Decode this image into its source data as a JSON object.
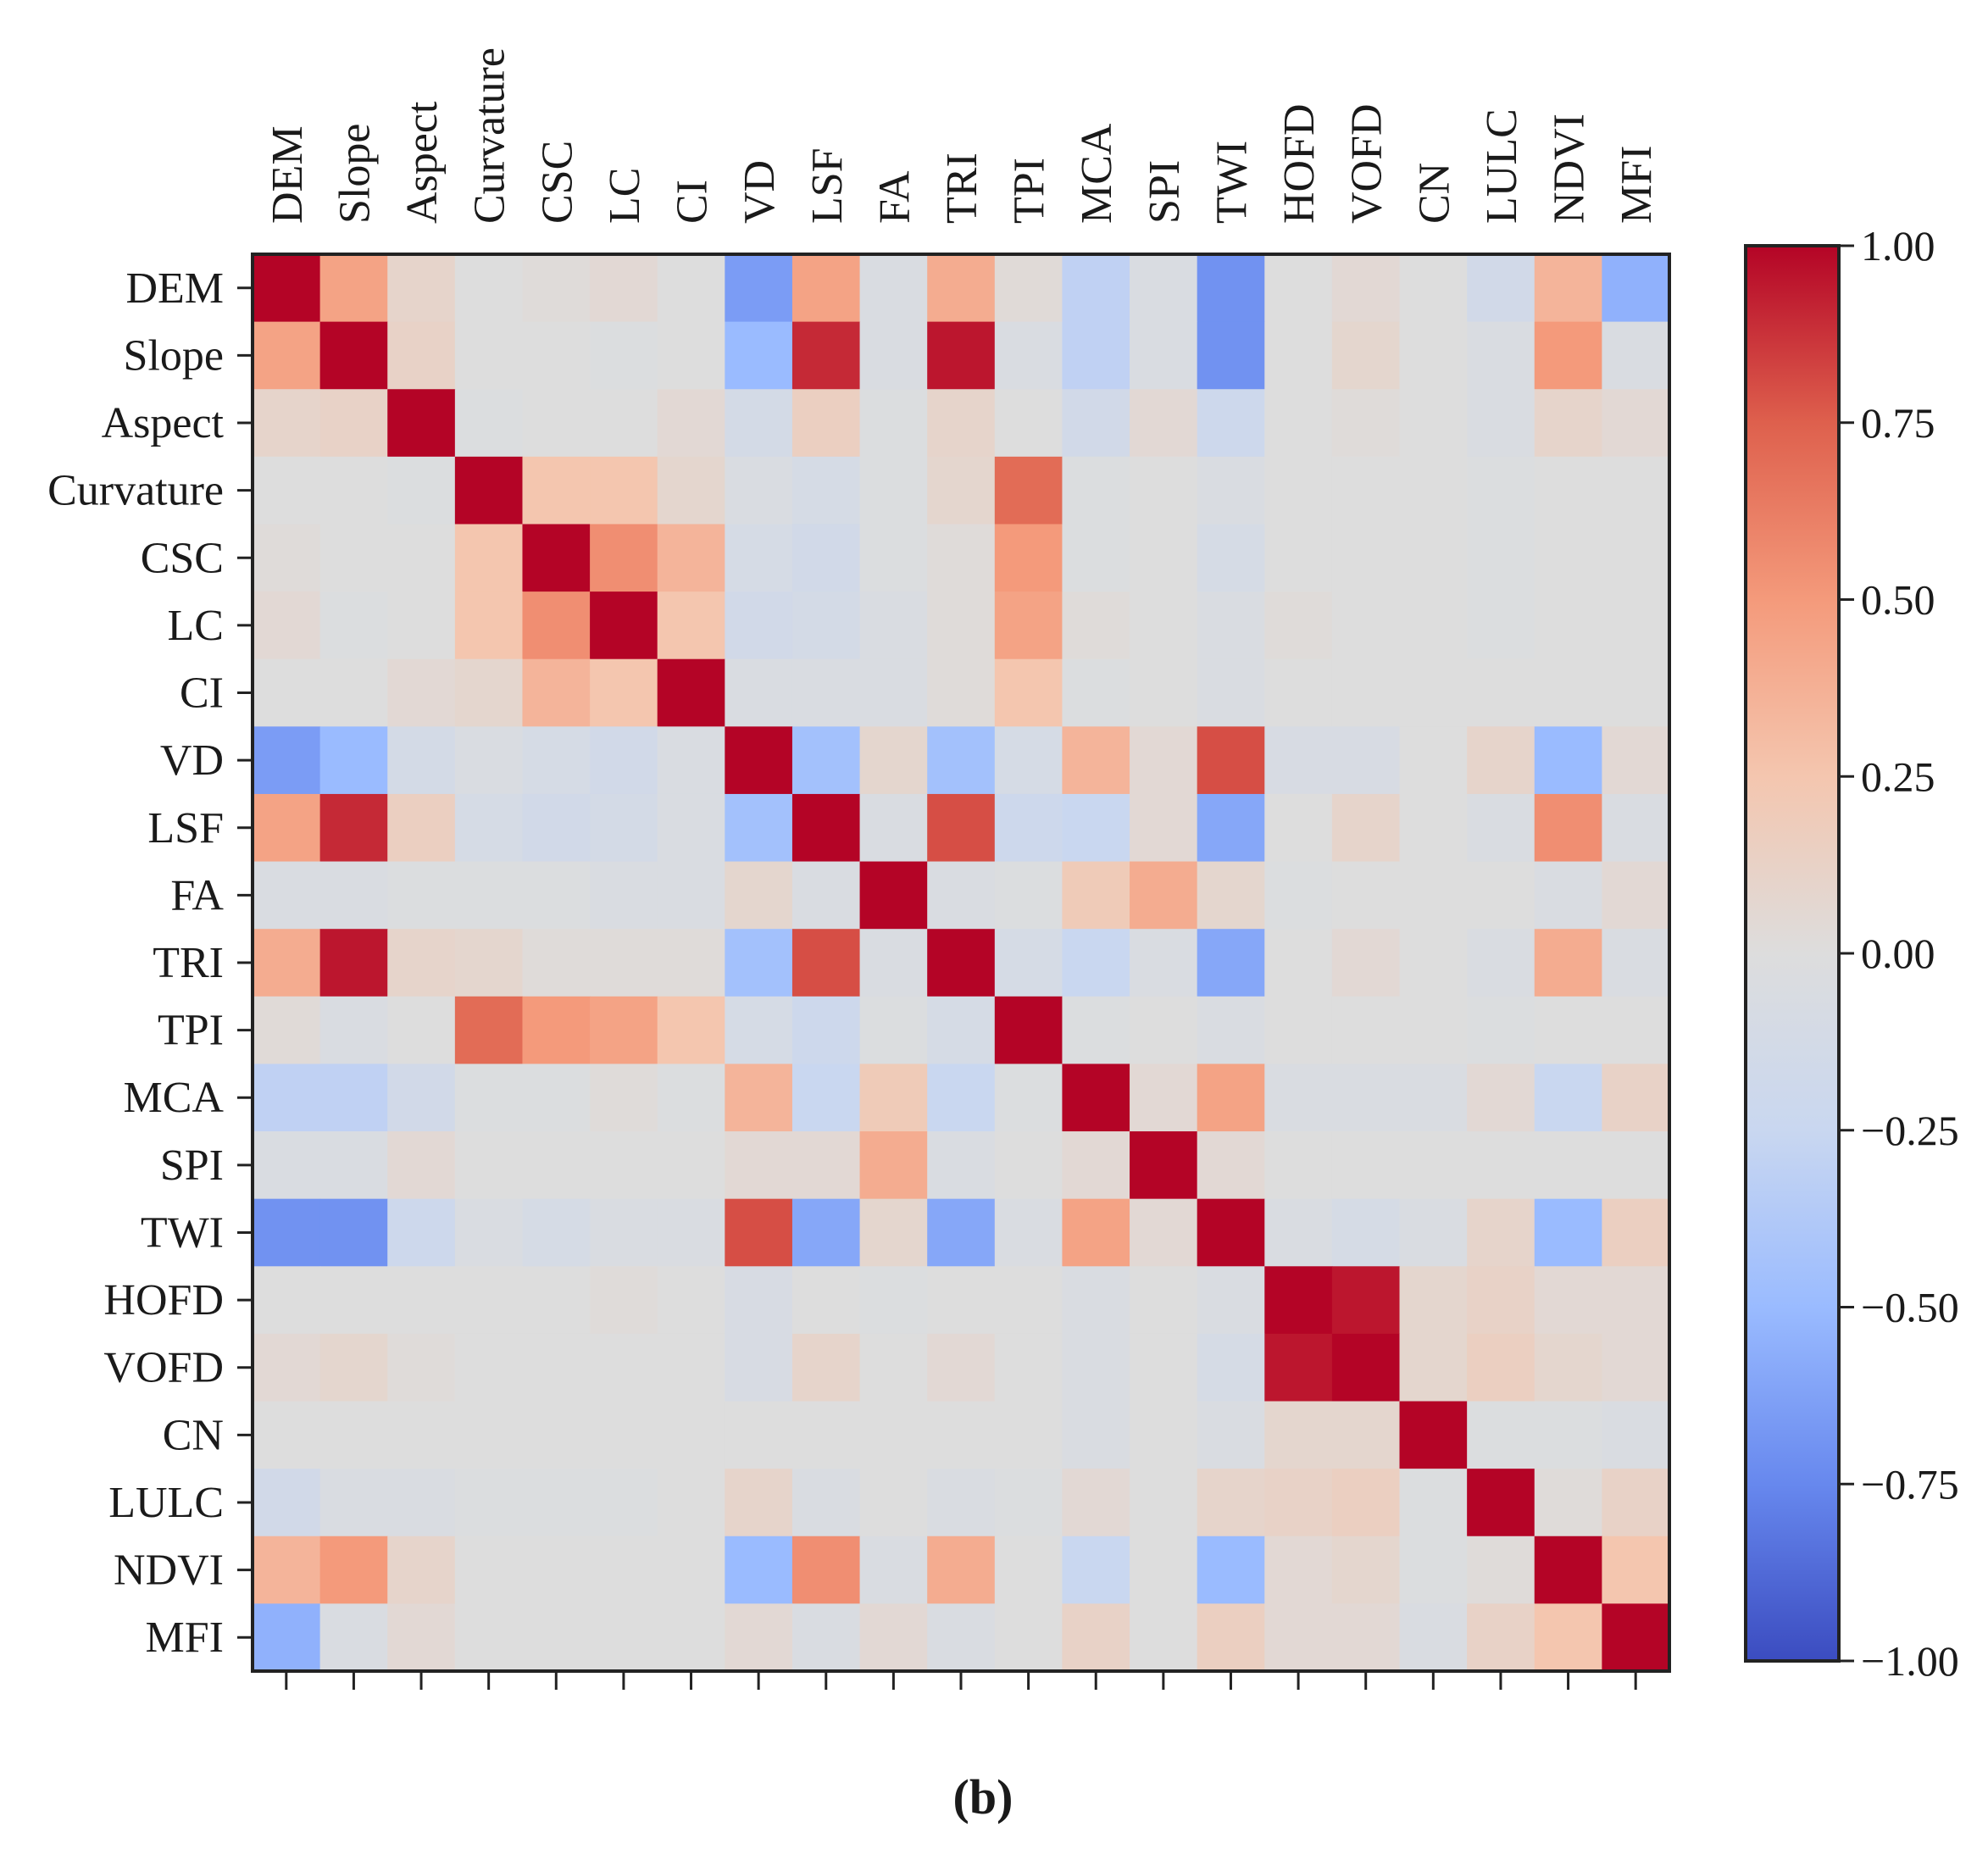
{
  "panel_label": "(b)",
  "colors": {
    "negative": "#3b4cc0",
    "neutral": "#dddddd",
    "positive": "#b40426"
  },
  "chart_data": {
    "type": "heatmap",
    "title": "",
    "colormap": "coolwarm",
    "vmin": -1.0,
    "vmax": 1.0,
    "x_labels": [
      "DEM",
      "Slope",
      "Aspect",
      "Curvature",
      "CSC",
      "LC",
      "CI",
      "VD",
      "LSF",
      "FA",
      "TRI",
      "TPI",
      "MCA",
      "SPI",
      "TWI",
      "HOFD",
      "VOFD",
      "CN",
      "LULC",
      "NDVI",
      "MFI"
    ],
    "y_labels": [
      "DEM",
      "Slope",
      "Aspect",
      "Curvature",
      "CSC",
      "LC",
      "CI",
      "VD",
      "LSF",
      "FA",
      "TRI",
      "TPI",
      "MCA",
      "SPI",
      "TWI",
      "HOFD",
      "VOFD",
      "CN",
      "LULC",
      "NDVI",
      "MFI"
    ],
    "colorbar": {
      "ticks": [
        1.0,
        0.75,
        0.5,
        0.25,
        0.0,
        -0.25,
        -0.5,
        -0.75,
        -1.0
      ],
      "tick_labels": [
        "1.00",
        "0.75",
        "0.50",
        "0.25",
        "0.00",
        "−0.25",
        "−0.50",
        "−0.75",
        "−1.00"
      ]
    },
    "matrix": [
      [
        1.0,
        0.45,
        0.1,
        0.0,
        0.02,
        0.05,
        0.0,
        -0.65,
        0.45,
        -0.05,
        0.4,
        0.03,
        -0.3,
        -0.05,
        -0.7,
        0.0,
        0.05,
        0.0,
        -0.15,
        0.35,
        -0.55
      ],
      [
        0.45,
        1.0,
        0.12,
        0.0,
        0.0,
        -0.02,
        0.0,
        -0.5,
        0.9,
        -0.05,
        0.95,
        -0.05,
        -0.3,
        -0.05,
        -0.7,
        0.0,
        0.08,
        0.0,
        -0.05,
        0.5,
        -0.05
      ],
      [
        0.1,
        0.12,
        1.0,
        -0.02,
        0.0,
        0.0,
        0.05,
        -0.12,
        0.15,
        -0.02,
        0.1,
        0.0,
        -0.15,
        0.05,
        -0.2,
        0.0,
        0.02,
        0.0,
        -0.05,
        0.1,
        0.05
      ],
      [
        0.0,
        0.0,
        -0.02,
        1.0,
        0.25,
        0.25,
        0.08,
        -0.05,
        -0.1,
        -0.02,
        0.08,
        0.7,
        -0.02,
        0.0,
        -0.05,
        0.0,
        0.0,
        0.0,
        -0.02,
        0.0,
        0.0
      ],
      [
        0.02,
        0.0,
        0.0,
        0.25,
        1.0,
        0.55,
        0.35,
        -0.1,
        -0.15,
        -0.02,
        0.02,
        0.5,
        -0.02,
        0.0,
        -0.1,
        0.0,
        0.0,
        0.0,
        -0.02,
        0.0,
        0.0
      ],
      [
        0.05,
        -0.02,
        0.0,
        0.25,
        0.55,
        1.0,
        0.25,
        -0.15,
        -0.12,
        -0.05,
        0.02,
        0.45,
        0.02,
        0.0,
        -0.05,
        0.02,
        0.0,
        0.0,
        -0.02,
        0.0,
        0.0
      ],
      [
        0.0,
        0.0,
        0.05,
        0.08,
        0.35,
        0.25,
        1.0,
        -0.05,
        -0.05,
        -0.05,
        0.02,
        0.25,
        -0.02,
        0.0,
        -0.05,
        0.0,
        0.0,
        0.0,
        0.0,
        0.0,
        0.0
      ],
      [
        -0.65,
        -0.5,
        -0.12,
        -0.05,
        -0.1,
        -0.15,
        -0.05,
        1.0,
        -0.45,
        0.08,
        -0.45,
        -0.1,
        0.35,
        0.05,
        0.8,
        -0.08,
        -0.08,
        0.0,
        0.1,
        -0.5,
        0.05
      ],
      [
        0.45,
        0.9,
        0.15,
        -0.1,
        -0.15,
        -0.12,
        -0.05,
        -0.45,
        1.0,
        -0.05,
        0.8,
        -0.2,
        -0.25,
        0.05,
        -0.6,
        0.0,
        0.1,
        0.0,
        -0.05,
        0.55,
        -0.05
      ],
      [
        -0.05,
        -0.05,
        -0.02,
        -0.02,
        -0.02,
        -0.05,
        -0.05,
        0.08,
        -0.05,
        1.0,
        -0.05,
        -0.02,
        0.2,
        0.4,
        0.08,
        -0.02,
        0.0,
        0.0,
        0.0,
        -0.05,
        0.05
      ],
      [
        0.4,
        0.95,
        0.1,
        0.08,
        0.02,
        0.02,
        0.02,
        -0.45,
        0.8,
        -0.05,
        1.0,
        -0.1,
        -0.25,
        -0.05,
        -0.6,
        0.0,
        0.05,
        0.0,
        -0.05,
        0.4,
        -0.05
      ],
      [
        0.03,
        -0.05,
        0.0,
        0.7,
        0.5,
        0.45,
        0.25,
        -0.1,
        -0.2,
        -0.02,
        -0.1,
        1.0,
        -0.02,
        0.0,
        -0.05,
        0.0,
        0.0,
        0.0,
        -0.02,
        0.0,
        0.0
      ],
      [
        -0.3,
        -0.3,
        -0.15,
        -0.02,
        -0.02,
        0.02,
        -0.02,
        0.35,
        -0.25,
        0.2,
        -0.25,
        -0.02,
        1.0,
        0.05,
        0.45,
        -0.05,
        -0.05,
        -0.05,
        0.05,
        -0.25,
        0.12
      ],
      [
        -0.05,
        -0.05,
        0.05,
        0.0,
        0.0,
        0.0,
        0.0,
        0.05,
        0.05,
        0.4,
        -0.05,
        0.0,
        0.05,
        1.0,
        0.05,
        0.0,
        0.0,
        0.0,
        0.0,
        0.0,
        0.0
      ],
      [
        -0.7,
        -0.7,
        -0.2,
        -0.05,
        -0.1,
        -0.05,
        -0.05,
        0.8,
        -0.6,
        0.08,
        -0.6,
        -0.05,
        0.45,
        0.05,
        1.0,
        -0.05,
        -0.1,
        -0.05,
        0.1,
        -0.5,
        0.15
      ],
      [
        0.0,
        0.0,
        0.0,
        0.0,
        0.0,
        0.02,
        0.0,
        -0.08,
        0.0,
        -0.02,
        0.0,
        0.0,
        -0.05,
        0.0,
        -0.05,
        1.0,
        0.95,
        0.08,
        0.12,
        0.05,
        0.05
      ],
      [
        0.05,
        0.08,
        0.02,
        0.0,
        0.0,
        0.0,
        0.0,
        -0.08,
        0.1,
        0.0,
        0.05,
        0.0,
        -0.05,
        0.0,
        -0.1,
        0.95,
        1.0,
        0.08,
        0.15,
        0.08,
        0.05
      ],
      [
        0.0,
        0.0,
        0.0,
        0.0,
        0.0,
        0.0,
        0.0,
        0.0,
        0.0,
        0.0,
        0.0,
        0.0,
        -0.05,
        0.0,
        -0.05,
        0.08,
        0.08,
        1.0,
        -0.02,
        -0.02,
        -0.05
      ],
      [
        -0.15,
        -0.05,
        -0.05,
        -0.02,
        -0.02,
        -0.02,
        0.0,
        0.1,
        -0.05,
        0.0,
        -0.05,
        -0.02,
        0.05,
        0.0,
        0.1,
        0.12,
        0.15,
        -0.02,
        1.0,
        0.02,
        0.12
      ],
      [
        0.35,
        0.5,
        0.1,
        0.0,
        0.0,
        0.0,
        0.0,
        -0.5,
        0.55,
        -0.05,
        0.4,
        0.0,
        -0.25,
        0.0,
        -0.5,
        0.05,
        0.08,
        -0.02,
        0.02,
        1.0,
        0.25
      ],
      [
        -0.55,
        -0.05,
        0.05,
        0.0,
        0.0,
        0.0,
        0.0,
        0.05,
        -0.05,
        0.05,
        -0.05,
        0.0,
        0.12,
        0.0,
        0.15,
        0.05,
        0.05,
        -0.05,
        0.12,
        0.25,
        1.0
      ]
    ]
  }
}
